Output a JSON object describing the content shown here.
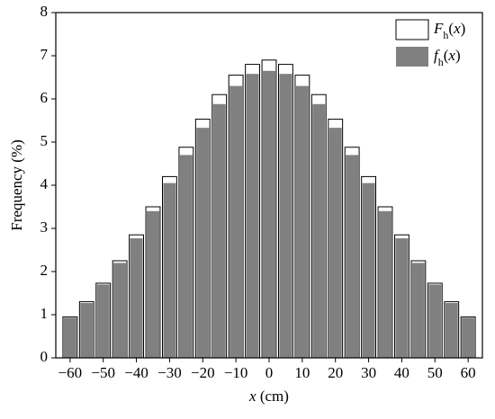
{
  "chart_data": {
    "type": "bar",
    "x_label": "x (cm)",
    "y_label": "Frequency (%)",
    "x": [
      -60,
      -55,
      -50,
      -45,
      -40,
      -35,
      -30,
      -25,
      -20,
      -15,
      -10,
      -5,
      0,
      5,
      10,
      15,
      20,
      25,
      30,
      35,
      40,
      45,
      50,
      55,
      60
    ],
    "series": [
      {
        "name": "Fh(x)",
        "color": "#ffffff",
        "values": [
          0.95,
          1.3,
          1.73,
          2.25,
          2.85,
          3.5,
          4.2,
          4.88,
          5.53,
          6.1,
          6.55,
          6.8,
          6.9,
          6.8,
          6.55,
          6.1,
          5.53,
          4.88,
          4.2,
          3.5,
          2.85,
          2.25,
          1.73,
          1.3,
          0.95
        ]
      },
      {
        "name": "fh(x)",
        "color": "#808080",
        "values": [
          0.93,
          1.27,
          1.7,
          2.2,
          2.77,
          3.4,
          4.05,
          4.7,
          5.33,
          5.88,
          6.3,
          6.58,
          6.65,
          6.58,
          6.3,
          5.88,
          5.33,
          4.7,
          4.05,
          3.4,
          2.77,
          2.2,
          1.7,
          1.27,
          0.93
        ]
      }
    ],
    "xlim": [
      -64.3,
      64.3
    ],
    "ylim": [
      0,
      8
    ],
    "xticks": [
      {
        "value": -60,
        "label": "−60"
      },
      {
        "value": -50,
        "label": "−50"
      },
      {
        "value": -40,
        "label": "−40"
      },
      {
        "value": -30,
        "label": "−30"
      },
      {
        "value": -20,
        "label": "−20"
      },
      {
        "value": -10,
        "label": "−10"
      },
      0,
      10,
      20,
      30,
      40,
      50,
      60
    ],
    "yticks": [
      0,
      1,
      2,
      3,
      4,
      5,
      6,
      7,
      8
    ],
    "legend": "upper right"
  }
}
